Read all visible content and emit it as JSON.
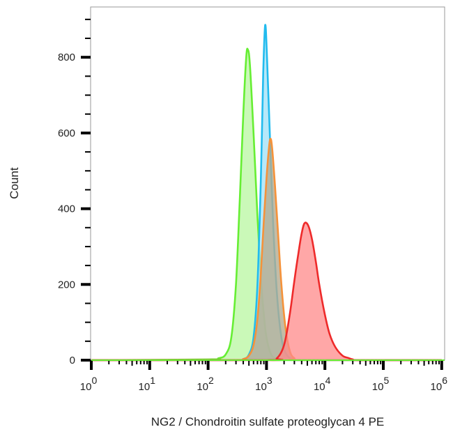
{
  "chart_data": {
    "type": "area",
    "subtype": "flow-cytometry-histogram-overlay",
    "title": "",
    "xlabel": "NG2 / Chondroitin sulfate proteoglycan 4 PE",
    "ylabel": "Count",
    "xscale": "log",
    "xlim": [
      1,
      1000000
    ],
    "ylim": [
      0,
      930
    ],
    "x_ticks": [
      {
        "value": 1,
        "base": "10",
        "exp": "0"
      },
      {
        "value": 10,
        "base": "10",
        "exp": "1"
      },
      {
        "value": 100,
        "base": "10",
        "exp": "2"
      },
      {
        "value": 1000,
        "base": "10",
        "exp": "3"
      },
      {
        "value": 10000,
        "base": "10",
        "exp": "4"
      },
      {
        "value": 100000,
        "base": "10",
        "exp": "5"
      },
      {
        "value": 1000000,
        "base": "10",
        "exp": "6"
      }
    ],
    "y_ticks": [
      {
        "value": 0,
        "label": "0"
      },
      {
        "value": 200,
        "label": "200"
      },
      {
        "value": 400,
        "label": "400"
      },
      {
        "value": 600,
        "label": "600"
      },
      {
        "value": 800,
        "label": "800"
      }
    ],
    "y_minor_step": 50,
    "grid": false,
    "legend": null,
    "series": [
      {
        "name": "green-histogram",
        "stroke": "#66ee33",
        "fill": "#b8f7a0",
        "fill_opacity": 0.75,
        "peak": {
          "x": 470,
          "count": 820
        },
        "points": [
          [
            1,
            0
          ],
          [
            100,
            2
          ],
          [
            150,
            5
          ],
          [
            200,
            15
          ],
          [
            250,
            60
          ],
          [
            300,
            200
          ],
          [
            350,
            430
          ],
          [
            400,
            650
          ],
          [
            450,
            800
          ],
          [
            480,
            820
          ],
          [
            520,
            780
          ],
          [
            600,
            600
          ],
          [
            700,
            380
          ],
          [
            800,
            220
          ],
          [
            900,
            120
          ],
          [
            1000,
            60
          ],
          [
            1200,
            15
          ],
          [
            1500,
            3
          ],
          [
            2000,
            0
          ],
          [
            1000000,
            0
          ]
        ]
      },
      {
        "name": "blue-histogram",
        "stroke": "#22bbee",
        "fill": "#9fe0f7",
        "fill_opacity": 0.75,
        "peak": {
          "x": 950,
          "count": 885
        },
        "points": [
          [
            1,
            0
          ],
          [
            250,
            0
          ],
          [
            400,
            3
          ],
          [
            500,
            15
          ],
          [
            600,
            60
          ],
          [
            700,
            200
          ],
          [
            800,
            480
          ],
          [
            880,
            760
          ],
          [
            950,
            885
          ],
          [
            1020,
            800
          ],
          [
            1150,
            580
          ],
          [
            1300,
            360
          ],
          [
            1500,
            180
          ],
          [
            1800,
            60
          ],
          [
            2200,
            15
          ],
          [
            3000,
            2
          ],
          [
            5000,
            0
          ],
          [
            1000000,
            0
          ]
        ]
      },
      {
        "name": "orange-histogram",
        "stroke": "#f5923a",
        "fill": "#b5ab90",
        "fill_opacity": 0.8,
        "peak": {
          "x": 1170,
          "count": 585
        },
        "points": [
          [
            1,
            0
          ],
          [
            250,
            0
          ],
          [
            400,
            3
          ],
          [
            500,
            12
          ],
          [
            600,
            40
          ],
          [
            700,
            110
          ],
          [
            800,
            230
          ],
          [
            900,
            370
          ],
          [
            1000,
            480
          ],
          [
            1100,
            560
          ],
          [
            1170,
            585
          ],
          [
            1250,
            560
          ],
          [
            1400,
            460
          ],
          [
            1600,
            320
          ],
          [
            1800,
            200
          ],
          [
            2100,
            90
          ],
          [
            2500,
            25
          ],
          [
            3000,
            5
          ],
          [
            4000,
            0
          ],
          [
            1000000,
            0
          ]
        ]
      },
      {
        "name": "red-histogram",
        "stroke": "#ee2a2a",
        "fill": "#ff8a8a",
        "fill_opacity": 0.75,
        "peak": {
          "x": 4600,
          "count": 362
        },
        "points": [
          [
            1,
            0
          ],
          [
            1000,
            0
          ],
          [
            1500,
            5
          ],
          [
            2000,
            40
          ],
          [
            2500,
            120
          ],
          [
            3000,
            210
          ],
          [
            3500,
            280
          ],
          [
            4000,
            335
          ],
          [
            4500,
            362
          ],
          [
            5200,
            355
          ],
          [
            6000,
            320
          ],
          [
            7000,
            260
          ],
          [
            8000,
            200
          ],
          [
            10000,
            120
          ],
          [
            12000,
            70
          ],
          [
            15000,
            35
          ],
          [
            20000,
            12
          ],
          [
            25000,
            6
          ],
          [
            30000,
            2
          ],
          [
            40000,
            0
          ],
          [
            1000000,
            0
          ]
        ]
      }
    ]
  }
}
